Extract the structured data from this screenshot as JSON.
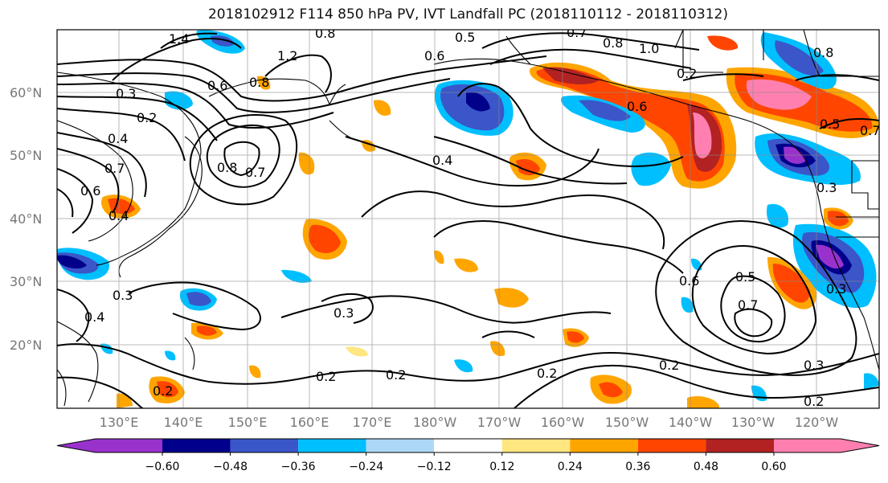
{
  "title": "2018102912 F114 850 hPa PV, IVT Landfall PC (2018110112 - 2018110312)",
  "lat_labels": [
    "60°N",
    "50°N",
    "40°N",
    "30°N",
    "20°N"
  ],
  "lon_labels": [
    "130°E",
    "140°E",
    "150°E",
    "160°E",
    "170°E",
    "180°W",
    "170°W",
    "160°W",
    "150°W",
    "140°W",
    "130°W",
    "120°W"
  ],
  "colorbar": {
    "colors": [
      "#9932cc",
      "#00008b",
      "#3a56c8",
      "#00bfff",
      "#add8f5",
      "#ffffff",
      "#ffe680",
      "#ffa500",
      "#ff4500",
      "#b22222",
      "#ff80b0"
    ],
    "ticks": [
      "−0.60",
      "−0.48",
      "−0.36",
      "−0.24",
      "−0.12",
      "0.12",
      "0.24",
      "0.36",
      "0.48",
      "0.60"
    ]
  },
  "contour_labels": [
    "1.4",
    "0.8",
    "0.5",
    "0.7",
    "0.8",
    "1.0",
    "0.6",
    "1.2",
    "0.3",
    "0.2",
    "0.4",
    "0.8",
    "0.7",
    "0.6",
    "0.4",
    "0.3",
    "0.6",
    "0.2",
    "0.5",
    "0.7",
    "0.8",
    "0.3",
    "0.3",
    "0.2",
    "0.2",
    "0.2",
    "0.2",
    "0.3",
    "0.2",
    "0.6",
    "0.5",
    "0.7",
    "0.4",
    "0.3",
    "0.6",
    "0.2",
    "0.4",
    "0.8",
    "0.7"
  ]
}
